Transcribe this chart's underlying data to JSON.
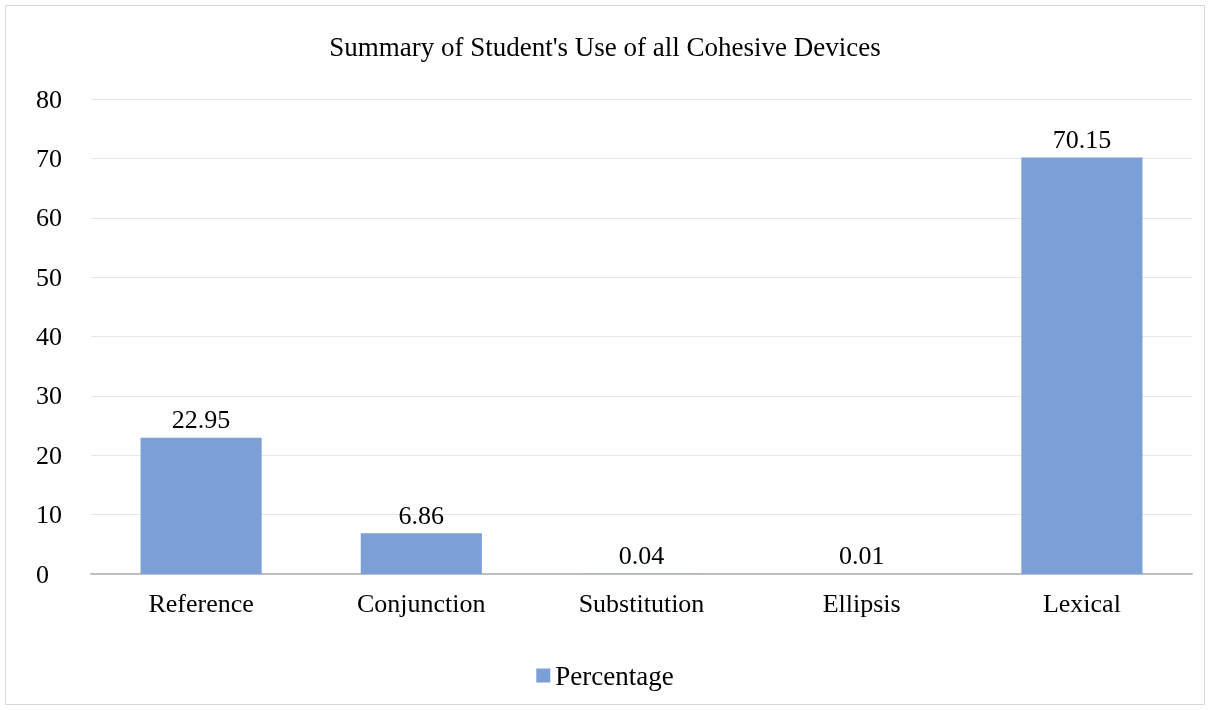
{
  "chart_data": {
    "type": "bar",
    "title": "Summary of Student's Use of all Cohesive Devices",
    "categories": [
      "Reference",
      "Conjunction",
      "Substitution",
      "Ellipsis",
      "Lexical"
    ],
    "series": [
      {
        "name": "Percentage",
        "color": "#7b9fd6",
        "values": [
          22.95,
          6.86,
          0.04,
          0.01,
          70.15
        ]
      }
    ],
    "ylim": [
      0,
      80
    ],
    "yticks": [
      0,
      10,
      20,
      30,
      40,
      50,
      60,
      70,
      80
    ],
    "grid": "y",
    "legend": "bottom",
    "data_labels": true
  }
}
